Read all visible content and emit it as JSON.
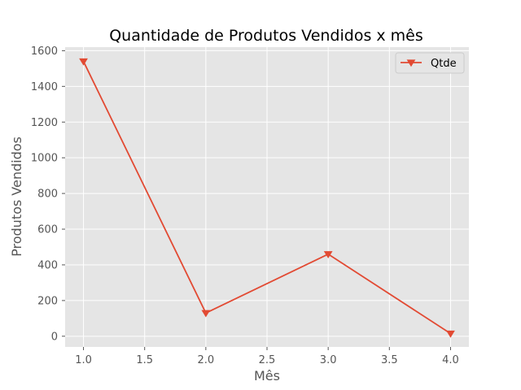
{
  "chart_data": {
    "type": "line",
    "title": "Quantidade de Produtos Vendidos x mês",
    "xlabel": "Mês",
    "ylabel": "Produtos Vendidos",
    "x": [
      1.0,
      2.0,
      3.0,
      4.0
    ],
    "series": [
      {
        "name": "Qtde",
        "values": [
          1540,
          130,
          460,
          15
        ],
        "color": "#E24A33",
        "marker": "triangle-down"
      }
    ],
    "xlim": [
      0.85,
      4.15
    ],
    "ylim": [
      -60,
      1620
    ],
    "x_ticks": [
      1.0,
      1.5,
      2.0,
      2.5,
      3.0,
      3.5,
      4.0
    ],
    "x_tick_labels": [
      "1.0",
      "1.5",
      "2.0",
      "2.5",
      "3.0",
      "3.5",
      "4.0"
    ],
    "y_ticks": [
      0,
      200,
      400,
      600,
      800,
      1000,
      1200,
      1400,
      1600
    ],
    "y_tick_labels": [
      "0",
      "200",
      "400",
      "600",
      "800",
      "1000",
      "1200",
      "1400",
      "1600"
    ],
    "grid": true,
    "legend_position": "top-right",
    "style": {
      "plot_background": "#E5E5E5",
      "grid_color": "#FFFFFF"
    }
  }
}
